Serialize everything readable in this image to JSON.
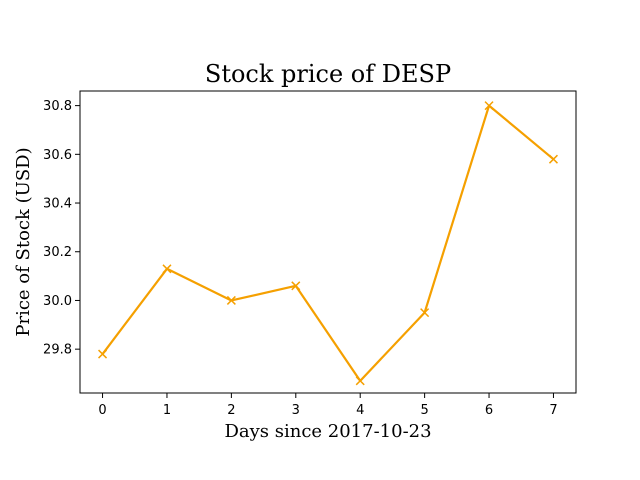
{
  "chart_data": {
    "type": "line",
    "title": "Stock price of DESP",
    "xlabel": "Days since 2017-10-23",
    "ylabel": "Price of Stock (USD)",
    "x": [
      0,
      1,
      2,
      3,
      4,
      5,
      6,
      7
    ],
    "xticks": [
      "0",
      "1",
      "2",
      "3",
      "4",
      "5",
      "6",
      "7"
    ],
    "yticks": [
      "29.8",
      "30.0",
      "30.2",
      "30.4",
      "30.6",
      "30.8"
    ],
    "xlim": [
      -0.35,
      7.35
    ],
    "ylim": [
      29.62,
      30.86
    ],
    "series": [
      {
        "color": "#f5a000",
        "marker": "x",
        "values": [
          29.78,
          30.13,
          30.0,
          30.06,
          29.67,
          29.95,
          30.8,
          30.58
        ]
      }
    ],
    "grid": false,
    "legend": "none"
  }
}
